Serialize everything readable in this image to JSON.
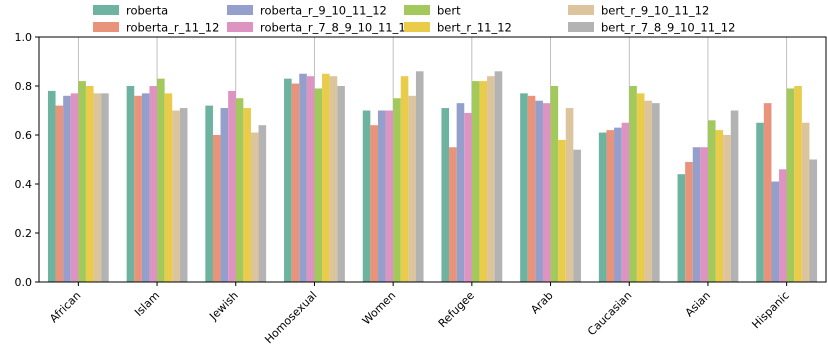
{
  "chart_data": {
    "type": "bar",
    "title": "",
    "xlabel": "",
    "ylabel": "",
    "ylim": [
      0,
      1.0
    ],
    "yticks": [
      "0.0",
      "0.2",
      "0.4",
      "0.6",
      "0.8",
      "1.0"
    ],
    "grid": "vertical-lines-at-category-centers",
    "legend_position": "top",
    "categories": [
      "African",
      "Islam",
      "Jewish",
      "Homosexual",
      "Women",
      "Refugee",
      "Arab",
      "Caucasian",
      "Asian",
      "Hispanic"
    ],
    "series": [
      {
        "name": "roberta",
        "color": "#6db39f",
        "values": [
          0.78,
          0.8,
          0.72,
          0.83,
          0.7,
          0.71,
          0.77,
          0.61,
          0.44,
          0.65
        ]
      },
      {
        "name": "roberta_r_11_12",
        "color": "#e8937a",
        "values": [
          0.72,
          0.76,
          0.6,
          0.81,
          0.64,
          0.55,
          0.76,
          0.62,
          0.49,
          0.73
        ]
      },
      {
        "name": "roberta_r_9_10_11_12",
        "color": "#949fcb",
        "values": [
          0.76,
          0.77,
          0.71,
          0.85,
          0.7,
          0.73,
          0.74,
          0.63,
          0.55,
          0.41
        ]
      },
      {
        "name": "roberta_r_7_8_9_10_11_12",
        "color": "#dd94c3",
        "values": [
          0.77,
          0.8,
          0.78,
          0.84,
          0.7,
          0.69,
          0.73,
          0.65,
          0.55,
          0.46
        ]
      },
      {
        "name": "bert",
        "color": "#a3c95c",
        "values": [
          0.82,
          0.83,
          0.75,
          0.79,
          0.75,
          0.82,
          0.8,
          0.8,
          0.66,
          0.79
        ]
      },
      {
        "name": "bert_r_11_12",
        "color": "#e9cc49",
        "values": [
          0.8,
          0.77,
          0.71,
          0.85,
          0.84,
          0.82,
          0.58,
          0.77,
          0.62,
          0.8
        ]
      },
      {
        "name": "bert_r_9_10_11_12",
        "color": "#dcc49c",
        "values": [
          0.77,
          0.7,
          0.61,
          0.84,
          0.76,
          0.84,
          0.71,
          0.74,
          0.6,
          0.65
        ]
      },
      {
        "name": "bert_r_7_8_9_10_11_12",
        "color": "#b3b3b3",
        "values": [
          0.77,
          0.71,
          0.64,
          0.8,
          0.86,
          0.86,
          0.54,
          0.73,
          0.7,
          0.5
        ]
      }
    ]
  }
}
